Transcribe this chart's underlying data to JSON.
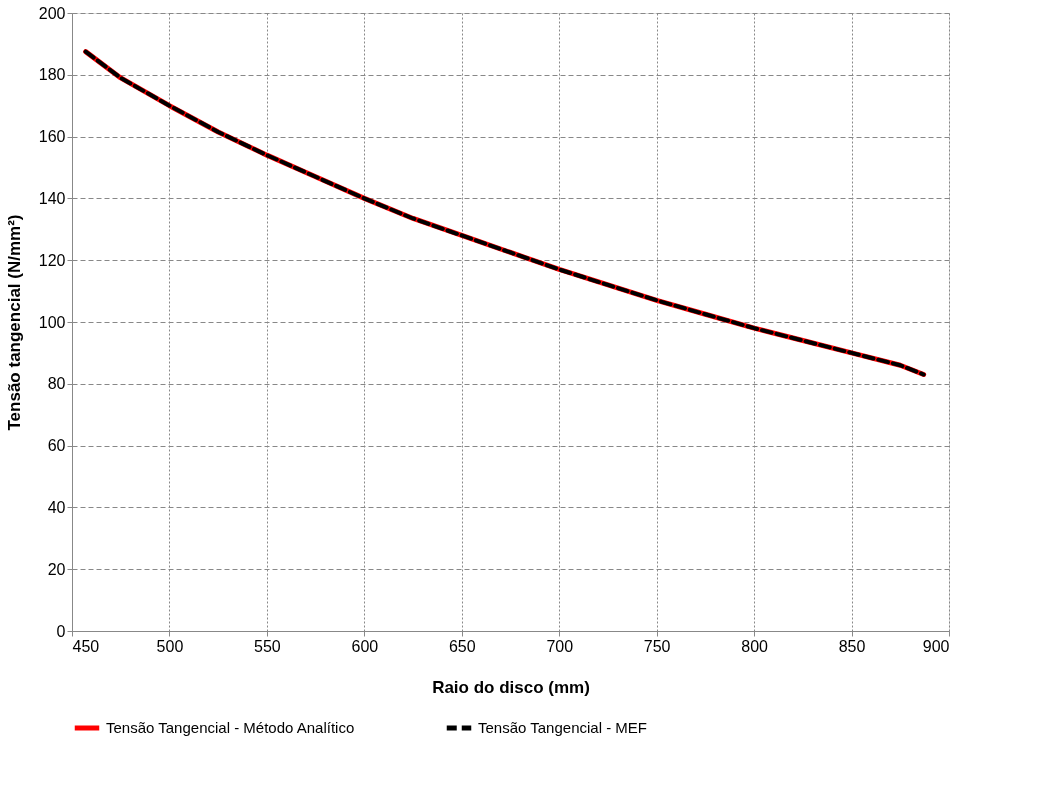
{
  "chart_data": {
    "type": "line",
    "xlabel": "Raio do disco (mm)",
    "ylabel": "Tensão tangencial  (N/mm²)",
    "x": [
      457,
      475,
      500,
      525,
      550,
      575,
      600,
      625,
      650,
      675,
      700,
      725,
      750,
      775,
      800,
      825,
      850,
      875,
      887
    ],
    "series": [
      {
        "name": "Tensão Tangencial - Método Analítico",
        "color": "#ff0000",
        "line_style": "solid",
        "values": [
          187.5,
          179,
          170,
          161.5,
          154,
          147,
          140,
          133.5,
          128,
          122.5,
          117,
          112,
          107,
          102.5,
          98,
          94,
          90,
          86,
          83
        ]
      },
      {
        "name": "Tensão Tangencial - MEF",
        "color": "#000000",
        "line_style": "dashed",
        "values": [
          187.5,
          179,
          170,
          161.5,
          154,
          147,
          140,
          133.5,
          128,
          122.5,
          117,
          112,
          107,
          102.5,
          98,
          94,
          90,
          86,
          83
        ]
      }
    ],
    "xlim": [
      450,
      900
    ],
    "xticks": [
      450,
      500,
      550,
      600,
      650,
      700,
      750,
      800,
      850,
      900
    ],
    "ylim": [
      0,
      200
    ],
    "yticks": [
      0,
      20,
      40,
      60,
      80,
      100,
      120,
      140,
      160,
      180,
      200
    ],
    "grid": true,
    "legend": "bottom",
    "marker": "none"
  }
}
